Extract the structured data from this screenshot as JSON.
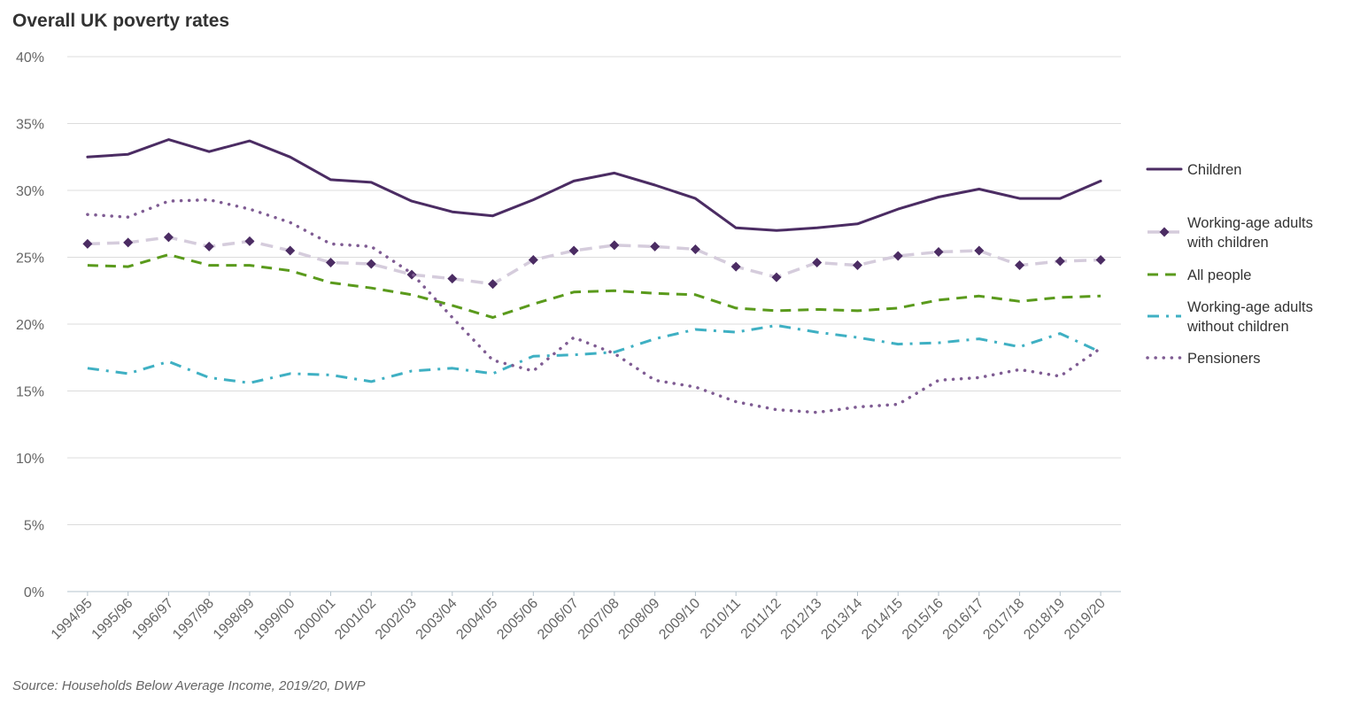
{
  "chart_data": {
    "type": "line",
    "title": "Overall UK poverty rates",
    "source": "Source: Households Below Average Income, 2019/20, DWP",
    "ylim": [
      0,
      40
    ],
    "yticks": [
      "0%",
      "5%",
      "10%",
      "15%",
      "20%",
      "25%",
      "30%",
      "35%",
      "40%"
    ],
    "grid": true,
    "legend_position": "right",
    "categories": [
      "1994/95",
      "1995/96",
      "1996/97",
      "1997/98",
      "1998/99",
      "1999/00",
      "2000/01",
      "2001/02",
      "2002/03",
      "2003/04",
      "2004/05",
      "2005/06",
      "2006/07",
      "2007/08",
      "2008/09",
      "2009/10",
      "2010/11",
      "2011/12",
      "2012/13",
      "2013/14",
      "2014/15",
      "2015/16",
      "2016/17",
      "2017/18",
      "2018/19",
      "2019/20"
    ],
    "series": [
      {
        "name": "Children",
        "color": "#4b2c63",
        "style": "solid",
        "values": [
          32.5,
          32.7,
          33.8,
          32.9,
          33.7,
          32.5,
          30.8,
          30.6,
          29.2,
          28.4,
          28.1,
          29.3,
          30.7,
          31.3,
          30.4,
          29.4,
          27.2,
          27.0,
          27.2,
          27.5,
          28.6,
          29.5,
          30.1,
          29.4,
          29.4,
          30.7
        ]
      },
      {
        "name": "Working-age adults with children",
        "legend_lines": [
          "Working-age adults",
          "with children"
        ],
        "color": "#d5ccdc",
        "marker_color": "#4b2c63",
        "style": "dash-diamond",
        "values": [
          26.0,
          26.1,
          26.5,
          25.8,
          26.2,
          25.5,
          24.6,
          24.5,
          23.7,
          23.4,
          23.0,
          24.8,
          25.5,
          25.9,
          25.8,
          25.6,
          24.3,
          23.5,
          24.6,
          24.4,
          25.1,
          25.4,
          25.5,
          24.4,
          24.7,
          24.8
        ]
      },
      {
        "name": "All people",
        "color": "#5a9a1c",
        "style": "dash",
        "values": [
          24.4,
          24.3,
          25.2,
          24.4,
          24.4,
          24.0,
          23.1,
          22.7,
          22.2,
          21.4,
          20.5,
          21.5,
          22.4,
          22.5,
          22.3,
          22.2,
          21.2,
          21.0,
          21.1,
          21.0,
          21.2,
          21.8,
          22.1,
          21.7,
          22.0,
          22.1
        ]
      },
      {
        "name": "Working-age adults without children",
        "legend_lines": [
          "Working-age adults",
          "without children"
        ],
        "color": "#3fb0c3",
        "style": "dashdot",
        "values": [
          16.7,
          16.3,
          17.2,
          16.0,
          15.6,
          16.3,
          16.2,
          15.7,
          16.5,
          16.7,
          16.3,
          17.6,
          17.7,
          17.9,
          18.9,
          19.6,
          19.4,
          19.9,
          19.4,
          19.0,
          18.5,
          18.6,
          18.9,
          18.3,
          19.3,
          17.9
        ]
      },
      {
        "name": "Pensioners",
        "color": "#7f5c93",
        "style": "dot",
        "values": [
          28.2,
          28.0,
          29.2,
          29.3,
          28.6,
          27.6,
          26.0,
          25.8,
          23.8,
          20.5,
          17.3,
          16.5,
          19.0,
          17.8,
          15.8,
          15.3,
          14.2,
          13.6,
          13.4,
          13.8,
          14.0,
          15.8,
          16.0,
          16.6,
          16.1,
          18.2
        ]
      }
    ]
  }
}
